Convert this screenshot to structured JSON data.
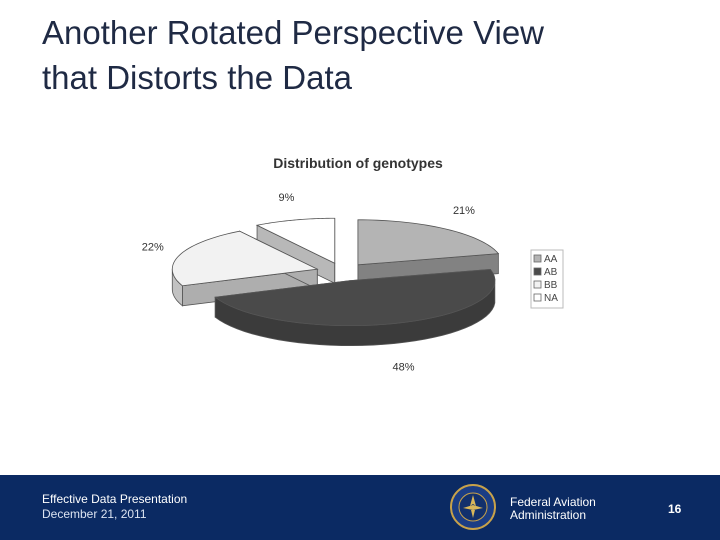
{
  "slide": {
    "title_line1": "Another Rotated Perspective View",
    "title_line2": "that Distorts the Data"
  },
  "chart_data": {
    "type": "pie",
    "title": "Distribution of genotypes",
    "style": "3D exploded pie, rotated perspective",
    "slices": [
      {
        "label": "AA",
        "value": 21,
        "value_label": "21%",
        "color": "#b4b4b4"
      },
      {
        "label": "AB",
        "value": 48,
        "value_label": "48%",
        "color": "#4a4a4a"
      },
      {
        "label": "BB",
        "value": 22,
        "value_label": "22%",
        "color": "#f2f2f2"
      },
      {
        "label": "NA",
        "value": 9,
        "value_label": "9%",
        "color": "#ffffff"
      }
    ],
    "legend_position": "right"
  },
  "footer": {
    "presentation": "Effective Data Presentation",
    "date": "December 21, 2011",
    "agency_line1": "Federal Aviation",
    "agency_line2": "Administration",
    "page_number": "16",
    "seal_text": "FEDERAL AVIATION ADMINISTRATION",
    "background": "#0b2a63"
  }
}
